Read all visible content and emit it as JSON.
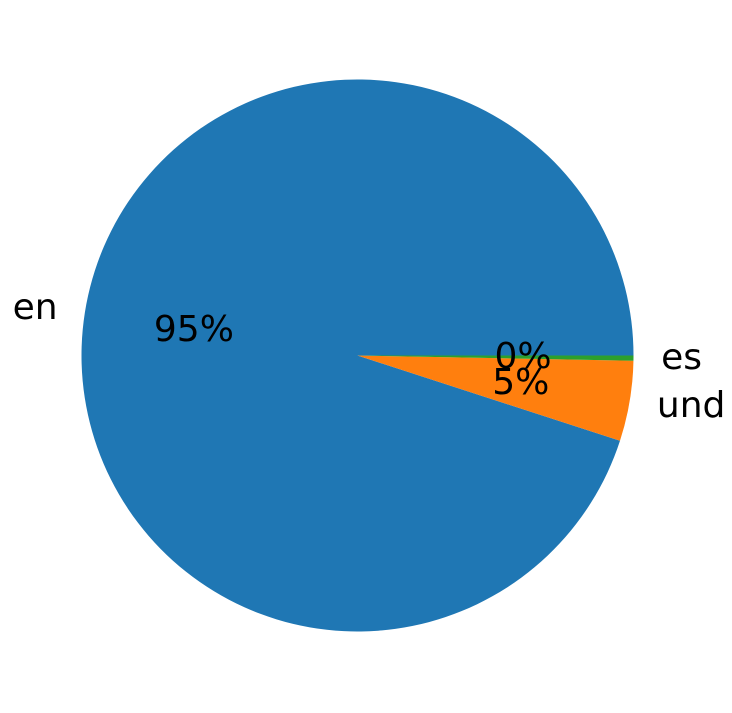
{
  "chart_data": {
    "type": "pie",
    "title": "",
    "slices": [
      {
        "label": "en",
        "value": 95.0,
        "pct_label": "95%",
        "color": "#1f77b4"
      },
      {
        "label": "und",
        "value": 4.7,
        "pct_label": "5%",
        "color": "#ff7f0e"
      },
      {
        "label": "es",
        "value": 0.3,
        "pct_label": "0%",
        "color": "#2ca02c"
      }
    ],
    "start_angle_deg": 0,
    "direction": "counterclockwise",
    "label_distance": 1.1,
    "pct_distance": 0.6,
    "legend": "none",
    "background": "#ffffff",
    "text_color": "#000000"
  }
}
